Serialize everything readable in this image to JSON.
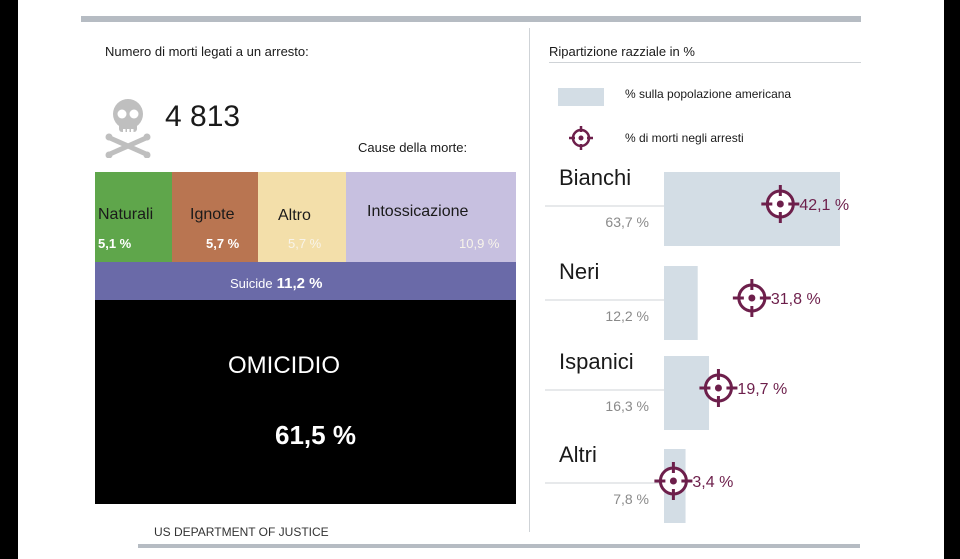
{
  "left_panel": {
    "headline": "Numero di morti legati a un arresto:",
    "total_deaths": "4 813",
    "causes_title": "Cause della morte:",
    "causes": {
      "naturali": {
        "name": "Naturali",
        "pct": "5,1 %"
      },
      "ignote": {
        "name": "Ignote",
        "pct": "5,7 %"
      },
      "altro": {
        "name": "Altro",
        "pct": "5,7 %"
      },
      "intossicazione": {
        "name": "Intossicazione",
        "pct": "10,9 %"
      },
      "suicide": {
        "name": "Suicide",
        "pct": "11,2 %"
      },
      "omicidio": {
        "name": "OMICIDIO",
        "pct": "61,5 %"
      }
    },
    "source": "US DEPARTMENT OF JUSTICE"
  },
  "right_panel": {
    "title": "Ripartizione razziale in %",
    "legend_population": "% sulla popolazione americana",
    "legend_deaths": "% di morti negli arresti"
  },
  "colors": {
    "naturali": "#5fa64b",
    "ignote": "#b97551",
    "altro": "#f3dfaa",
    "intossicazione": "#c7c0e0",
    "suicide": "#6a6aa8",
    "omicidio": "#000000",
    "population_bar": "#d3dde5",
    "target": "#6d1f4b"
  },
  "chart_data": [
    {
      "type": "table",
      "title": "Cause della morte:",
      "categories": [
        "Naturali",
        "Ignote",
        "Altro",
        "Intossicazione",
        "Suicide",
        "OMICIDIO"
      ],
      "values": [
        5.1,
        5.7,
        5.7,
        10.9,
        11.2,
        61.5
      ],
      "unit": "%"
    },
    {
      "type": "bar",
      "title": "Ripartizione razziale in %",
      "categories": [
        "Bianchi",
        "Neri",
        "Ispanici",
        "Altri"
      ],
      "series": [
        {
          "name": "% sulla popolazione americana",
          "values": [
            63.7,
            12.2,
            16.3,
            7.8
          ],
          "labels": [
            "63,7 %",
            "12,2 %",
            "16,3 %",
            "7,8 %"
          ]
        },
        {
          "name": "% di morti negli arresti",
          "values": [
            42.1,
            31.8,
            19.7,
            3.4
          ],
          "labels": [
            "42,1 %",
            "31,8 %",
            "19,7 %",
            "3,4 %"
          ]
        }
      ],
      "orientation": "horizontal",
      "xlim": [
        0,
        63.7
      ],
      "grid": false,
      "legend": "top"
    }
  ]
}
